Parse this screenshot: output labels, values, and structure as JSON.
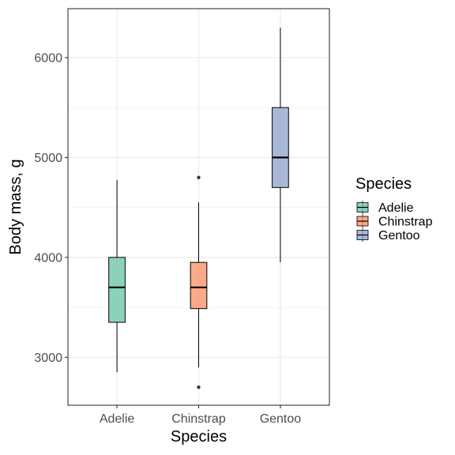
{
  "chart_data": {
    "type": "boxplot",
    "xlabel": "Species",
    "ylabel": "Body mass, g",
    "categories": [
      "Adelie",
      "Chinstrap",
      "Gentoo"
    ],
    "ylim": [
      2520,
      6490
    ],
    "yticks": [
      3000,
      4000,
      5000,
      6000
    ],
    "grid": true,
    "theme": "bw",
    "boxes": [
      {
        "category": "Adelie",
        "min": 2850,
        "q1": 3350,
        "median": 3700,
        "q3": 4000,
        "max": 4775,
        "outliers": [],
        "color": "#66c2a5"
      },
      {
        "category": "Chinstrap",
        "min": 2900,
        "q1": 3487.5,
        "median": 3700,
        "q3": 3950,
        "max": 4550,
        "outliers": [
          4800,
          2700
        ],
        "color": "#fc8d62"
      },
      {
        "category": "Gentoo",
        "min": 3950,
        "q1": 4700,
        "median": 5000,
        "q3": 5500,
        "max": 6300,
        "outliers": [],
        "color": "#8da0cb"
      }
    ],
    "legend": {
      "title": "Species",
      "position": "right",
      "entries": [
        {
          "label": "Adelie",
          "color": "#66c2a5"
        },
        {
          "label": "Chinstrap",
          "color": "#fc8d62"
        },
        {
          "label": "Gentoo",
          "color": "#8da0cb"
        }
      ]
    }
  }
}
